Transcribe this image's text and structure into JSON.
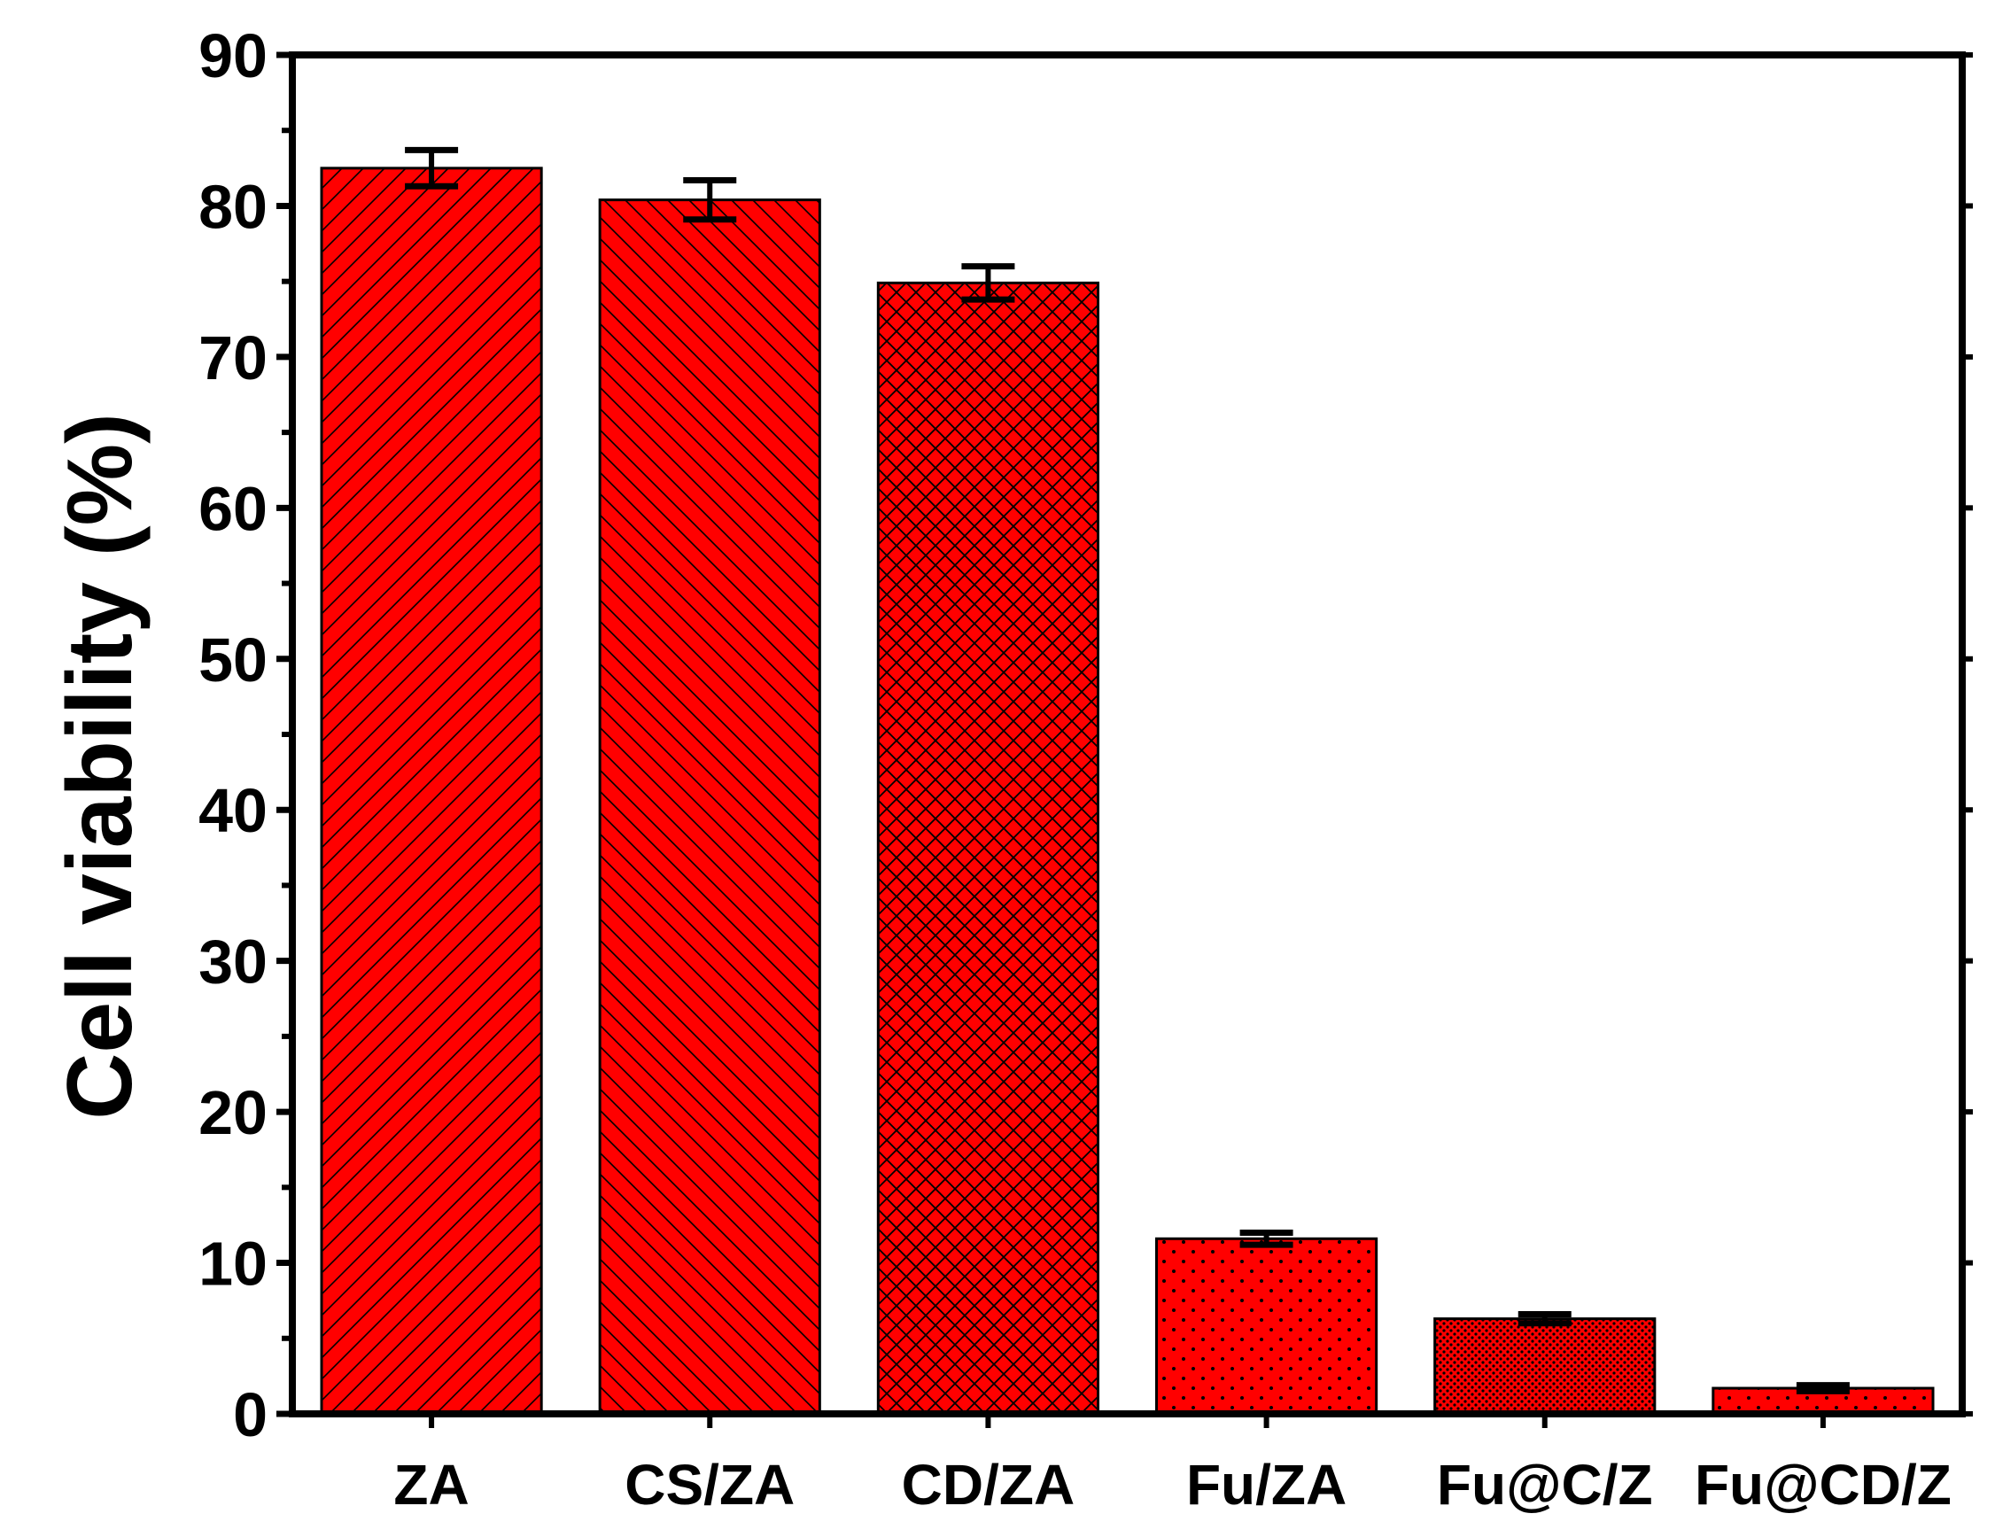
{
  "chart_data": {
    "type": "bar",
    "title": "",
    "xlabel": "",
    "ylabel": "Cell viability (%)",
    "ylim": [
      0,
      90
    ],
    "yticks": [
      0,
      10,
      20,
      30,
      40,
      50,
      60,
      70,
      80,
      90
    ],
    "categories": [
      "ZA",
      "CS/ZA",
      "CD/ZA",
      "Fu/ZA",
      "Fu@C/Z",
      "Fu@CD/Z"
    ],
    "values": [
      82.5,
      80.4,
      74.9,
      11.6,
      6.3,
      1.7
    ],
    "errors": [
      1.2,
      1.3,
      1.1,
      0.4,
      0.3,
      0.2
    ],
    "patterns": [
      "diag-forward",
      "diag-back",
      "crosshatch",
      "sparse-dots",
      "dense-dots",
      "sparse-dots"
    ],
    "bar_color": "#ff0000",
    "grid": false,
    "legend": "none"
  }
}
